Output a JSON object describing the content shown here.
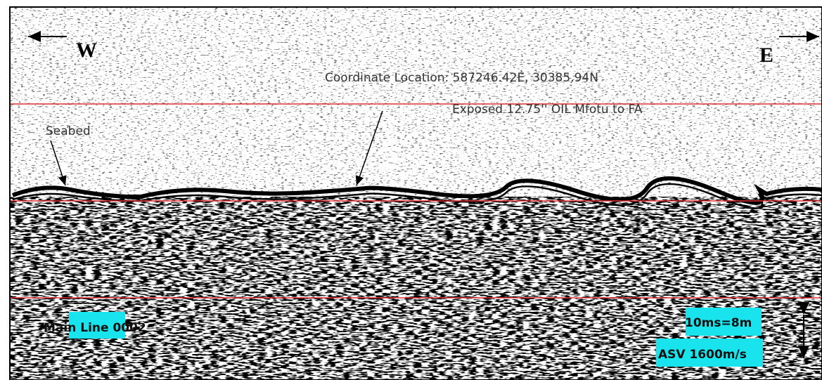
{
  "labels": {
    "west": "W",
    "east": "E",
    "coordinate": "Coordinate Location: 587246.42E, 30385.94N",
    "exposed": "Exposed 12.75'' OIL Mfotu to FA",
    "seabed": "Seabed",
    "line": "Main Line 0002",
    "scale": "10ms=8m",
    "velocity": "ASV 1600m/s"
  }
}
